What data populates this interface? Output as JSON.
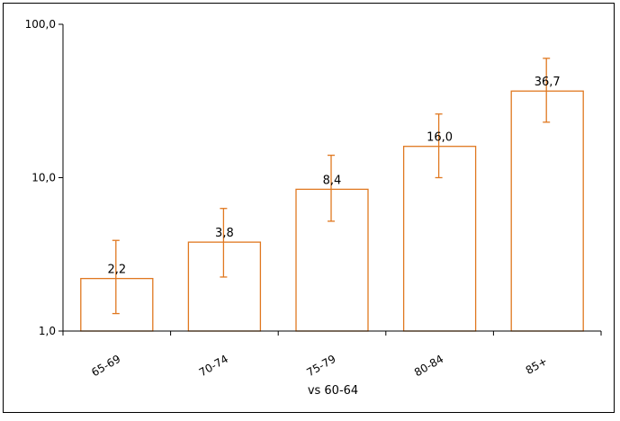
{
  "chart_data": {
    "type": "bar",
    "title": "",
    "xlabel": "vs 60-64",
    "ylabel": "",
    "y_scale": "log",
    "ylim": [
      1,
      100
    ],
    "y_ticks": [
      1,
      10,
      100
    ],
    "y_tick_labels": [
      "1,0",
      "10,0",
      "100,0"
    ],
    "categories": [
      "65-69",
      "70-74",
      "75-79",
      "80-84",
      "85+"
    ],
    "values": [
      2.2,
      3.8,
      8.4,
      16.0,
      36.7
    ],
    "data_labels": [
      "2,2",
      "3,8",
      "8,4",
      "16,0",
      "36,7"
    ],
    "error_low": [
      1.3,
      2.25,
      5.2,
      10.0,
      23.0
    ],
    "error_high": [
      3.9,
      6.3,
      14.0,
      26.0,
      60.0
    ],
    "grid": false,
    "legend": "none",
    "colors": {
      "bar_stroke": "#e07820",
      "bar_fill": "#ffffff",
      "error_bar": "#e07820",
      "axis": "#000000"
    }
  }
}
